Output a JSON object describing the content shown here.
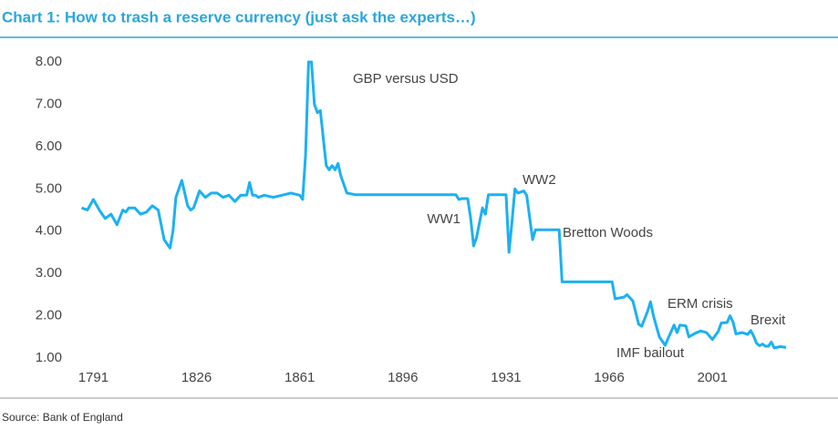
{
  "chart_data": {
    "type": "line",
    "title": "Chart 1: How to trash a reserve currency (just ask the experts…)",
    "source": "Source: Bank of England",
    "annotations": [
      "GBP versus USD",
      "WW1",
      "WW2",
      "Bretton Woods",
      "ERM crisis",
      "Brexit",
      "IMF bailout"
    ],
    "xlim": [
      1785,
      2030
    ],
    "xticks": [
      1791,
      1826,
      1861,
      1896,
      1931,
      1966,
      2001
    ],
    "ylim": [
      1,
      8
    ],
    "yticks": [
      {
        "value": 1,
        "label": "1.00"
      },
      {
        "value": 2,
        "label": "2.00"
      },
      {
        "value": 3,
        "label": "3.00"
      },
      {
        "value": 4,
        "label": "4.00"
      },
      {
        "value": 5,
        "label": "5.00"
      },
      {
        "value": 6,
        "label": "6.00"
      },
      {
        "value": 7,
        "label": "7.00"
      },
      {
        "value": 8,
        "label": "8.00"
      }
    ],
    "series": [
      {
        "name": "GBP versus USD",
        "color": "#1bb1f2",
        "x": [
          1787,
          1789,
          1791,
          1793,
          1795,
          1797,
          1799,
          1801,
          1802,
          1803,
          1805,
          1807,
          1809,
          1811,
          1813,
          1815,
          1817,
          1818,
          1819,
          1821,
          1823,
          1824,
          1825,
          1827,
          1829,
          1831,
          1833,
          1835,
          1837,
          1839,
          1841,
          1843,
          1844,
          1845,
          1846,
          1847,
          1849,
          1852,
          1855,
          1858,
          1861,
          1862,
          1863,
          1864,
          1865,
          1866,
          1867,
          1868,
          1869,
          1870,
          1871,
          1872,
          1873,
          1874,
          1875,
          1877,
          1880,
          1890,
          1900,
          1914,
          1915,
          1916,
          1918,
          1919,
          1920,
          1921,
          1923,
          1924,
          1925,
          1931,
          1932,
          1933,
          1934,
          1935,
          1937,
          1938,
          1940,
          1941,
          1949,
          1950,
          1967,
          1968,
          1971,
          1972,
          1974,
          1976,
          1977,
          1979,
          1980,
          1981,
          1983,
          1985,
          1986,
          1988,
          1989,
          1990,
          1992,
          1993,
          1995,
          1997,
          1999,
          2001,
          2003,
          2004,
          2006,
          2007,
          2008,
          2009,
          2011,
          2013,
          2014,
          2015,
          2016,
          2017,
          2018,
          2019,
          2020,
          2021,
          2022,
          2024,
          2026
        ],
        "values": [
          4.55,
          4.5,
          4.75,
          4.5,
          4.3,
          4.4,
          4.15,
          4.5,
          4.45,
          4.55,
          4.55,
          4.4,
          4.45,
          4.6,
          4.5,
          3.8,
          3.6,
          4.0,
          4.8,
          5.2,
          4.6,
          4.5,
          4.55,
          4.95,
          4.8,
          4.9,
          4.9,
          4.8,
          4.85,
          4.7,
          4.85,
          4.85,
          5.15,
          4.85,
          4.85,
          4.8,
          4.85,
          4.8,
          4.85,
          4.9,
          4.85,
          4.75,
          5.8,
          8.0,
          8.0,
          7.0,
          6.8,
          6.85,
          6.2,
          5.55,
          5.45,
          5.55,
          5.45,
          5.6,
          5.3,
          4.9,
          4.86,
          4.86,
          4.86,
          4.86,
          4.75,
          4.77,
          4.77,
          4.3,
          3.65,
          3.85,
          4.55,
          4.4,
          4.86,
          4.86,
          3.5,
          4.2,
          5.0,
          4.9,
          4.95,
          4.85,
          3.8,
          4.03,
          4.03,
          2.8,
          2.8,
          2.4,
          2.44,
          2.5,
          2.35,
          1.8,
          1.75,
          2.1,
          2.33,
          2.0,
          1.5,
          1.3,
          1.47,
          1.78,
          1.6,
          1.78,
          1.76,
          1.5,
          1.58,
          1.64,
          1.6,
          1.44,
          1.63,
          1.83,
          1.84,
          2.0,
          1.85,
          1.57,
          1.6,
          1.56,
          1.65,
          1.52,
          1.35,
          1.29,
          1.33,
          1.28,
          1.28,
          1.38,
          1.24,
          1.27,
          1.25
        ]
      }
    ]
  }
}
